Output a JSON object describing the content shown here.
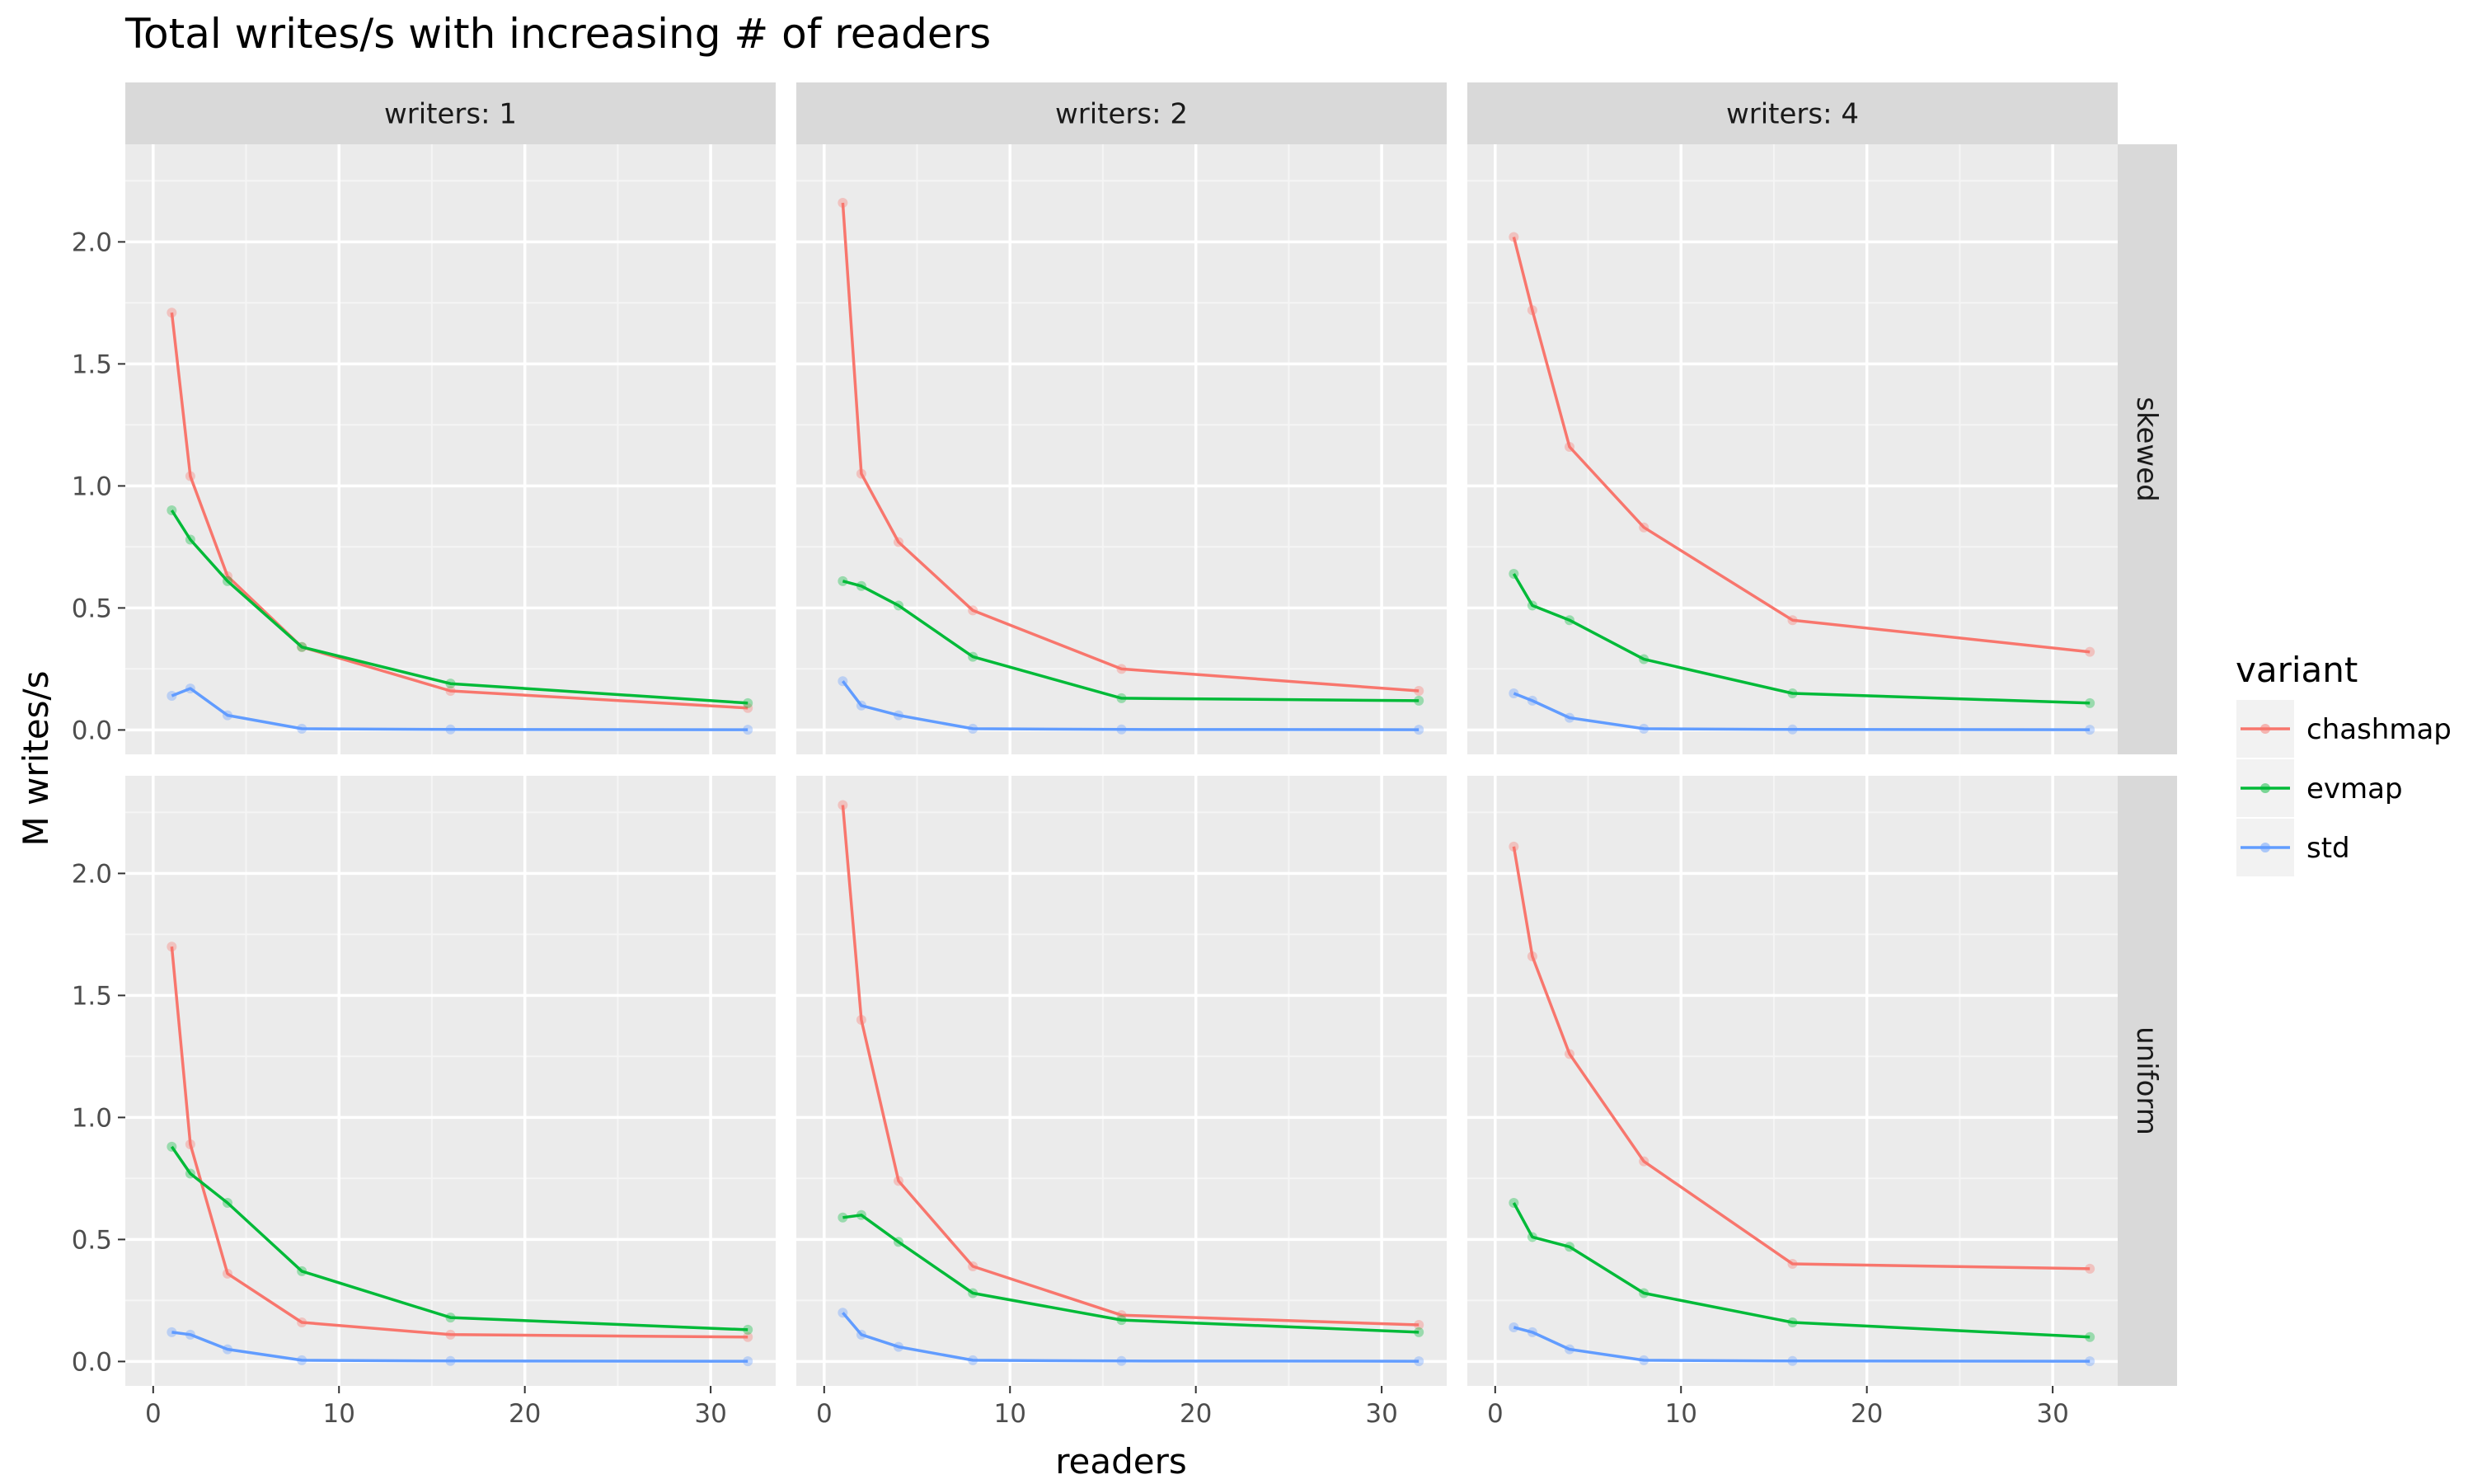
{
  "chart_data": {
    "type": "line",
    "title": "Total writes/s with increasing # of readers",
    "xlabel": "readers",
    "ylabel": "M writes/s",
    "xlim": [
      -1.5,
      33.5
    ],
    "ylim": [
      -0.1,
      2.4
    ],
    "x_ticks": [
      0,
      10,
      20,
      30
    ],
    "x_tick_labels": [
      "0",
      "10",
      "20",
      "30"
    ],
    "y_ticks": [
      0,
      0.5,
      1,
      1.5,
      2
    ],
    "y_tick_labels": [
      "0.0",
      "0.5",
      "1.0",
      "1.5",
      "2.0"
    ],
    "grid": true,
    "legend": {
      "title": "variant",
      "position": "right",
      "entries": [
        {
          "name": "chashmap",
          "color": "#F8766D"
        },
        {
          "name": "evmap",
          "color": "#00BA38"
        },
        {
          "name": "std",
          "color": "#619CFF"
        }
      ]
    },
    "columns": [
      "writers: 1",
      "writers: 2",
      "writers: 4"
    ],
    "rows": [
      "skewed",
      "uniform"
    ],
    "x": [
      1,
      2,
      4,
      8,
      16,
      32
    ],
    "panels": [
      {
        "row": "skewed",
        "column": "writers: 1",
        "series": [
          {
            "name": "chashmap",
            "values": [
              1.71,
              1.04,
              0.63,
              0.34,
              0.16,
              0.09
            ]
          },
          {
            "name": "evmap",
            "values": [
              0.9,
              0.78,
              0.61,
              0.34,
              0.19,
              0.11
            ]
          },
          {
            "name": "std",
            "values": [
              0.14,
              0.17,
              0.06,
              0.005,
              0.002,
              0.001
            ]
          }
        ]
      },
      {
        "row": "skewed",
        "column": "writers: 2",
        "series": [
          {
            "name": "chashmap",
            "values": [
              2.16,
              1.05,
              0.77,
              0.49,
              0.25,
              0.16
            ]
          },
          {
            "name": "evmap",
            "values": [
              0.61,
              0.59,
              0.51,
              0.3,
              0.13,
              0.12
            ]
          },
          {
            "name": "std",
            "values": [
              0.2,
              0.1,
              0.06,
              0.005,
              0.002,
              0.001
            ]
          }
        ]
      },
      {
        "row": "skewed",
        "column": "writers: 4",
        "series": [
          {
            "name": "chashmap",
            "values": [
              2.02,
              1.72,
              1.16,
              0.83,
              0.45,
              0.32
            ]
          },
          {
            "name": "evmap",
            "values": [
              0.64,
              0.51,
              0.45,
              0.29,
              0.15,
              0.11
            ]
          },
          {
            "name": "std",
            "values": [
              0.15,
              0.12,
              0.05,
              0.005,
              0.002,
              0.001
            ]
          }
        ]
      },
      {
        "row": "uniform",
        "column": "writers: 1",
        "series": [
          {
            "name": "chashmap",
            "values": [
              1.7,
              0.89,
              0.36,
              0.16,
              0.11,
              0.1
            ]
          },
          {
            "name": "evmap",
            "values": [
              0.88,
              0.77,
              0.65,
              0.37,
              0.18,
              0.13
            ]
          },
          {
            "name": "std",
            "values": [
              0.12,
              0.11,
              0.05,
              0.005,
              0.002,
              0.001
            ]
          }
        ]
      },
      {
        "row": "uniform",
        "column": "writers: 2",
        "series": [
          {
            "name": "chashmap",
            "values": [
              2.28,
              1.4,
              0.74,
              0.39,
              0.19,
              0.15
            ]
          },
          {
            "name": "evmap",
            "values": [
              0.59,
              0.6,
              0.49,
              0.28,
              0.17,
              0.12
            ]
          },
          {
            "name": "std",
            "values": [
              0.2,
              0.11,
              0.06,
              0.005,
              0.002,
              0.001
            ]
          }
        ]
      },
      {
        "row": "uniform",
        "column": "writers: 4",
        "series": [
          {
            "name": "chashmap",
            "values": [
              2.11,
              1.66,
              1.26,
              0.82,
              0.4,
              0.38
            ]
          },
          {
            "name": "evmap",
            "values": [
              0.65,
              0.51,
              0.47,
              0.28,
              0.16,
              0.1
            ]
          },
          {
            "name": "std",
            "values": [
              0.14,
              0.12,
              0.05,
              0.005,
              0.002,
              0.001
            ]
          }
        ]
      }
    ]
  }
}
